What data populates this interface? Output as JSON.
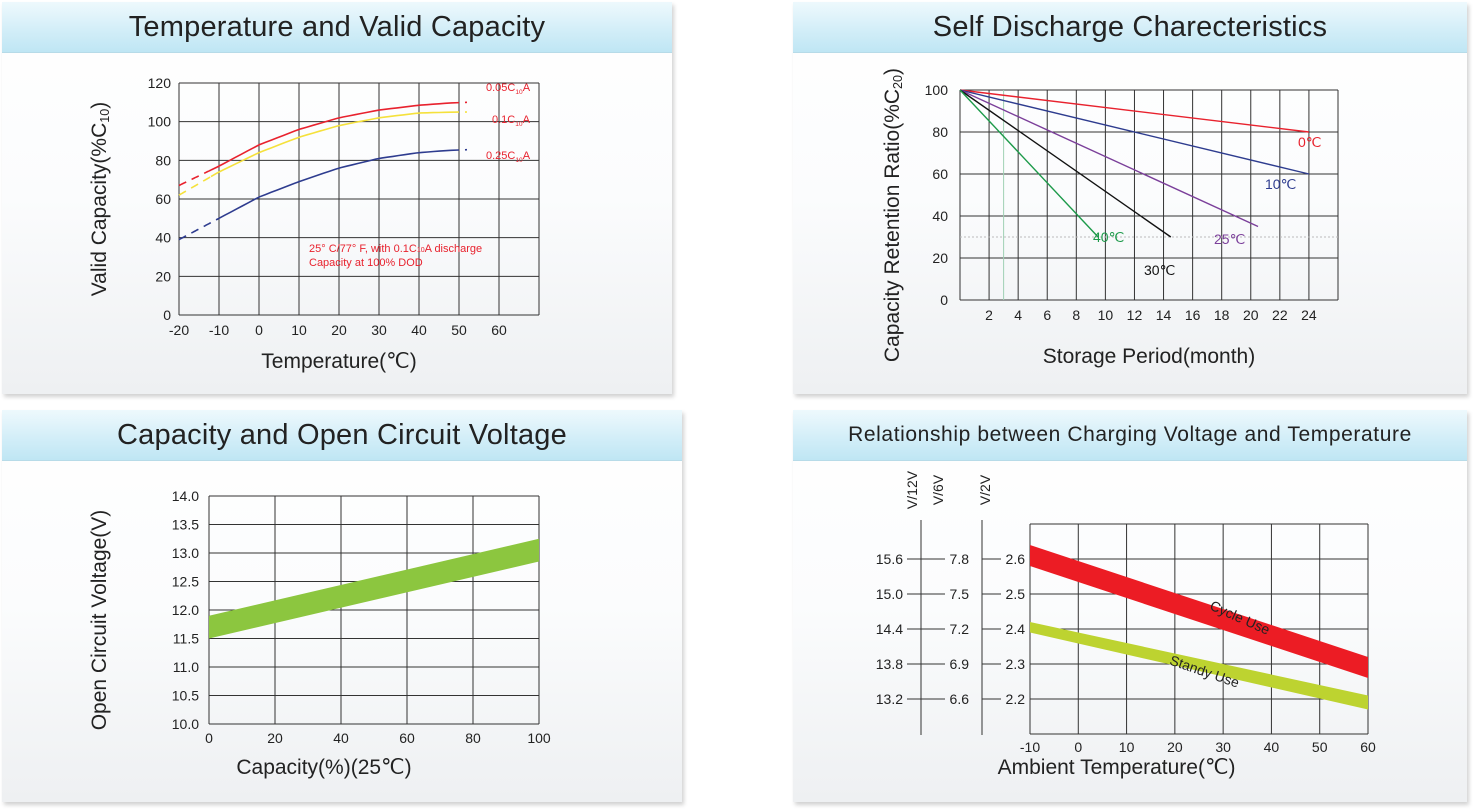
{
  "chart_data": [
    {
      "type": "line",
      "title": "Temperature and Valid Capacity",
      "xlabel": "Temperature(℃)",
      "ylabel": "Valid Capacity(%C10)",
      "xlim": [
        -20,
        70
      ],
      "ylim": [
        0,
        120
      ],
      "x_ticks": [
        "-20",
        "-10",
        "0",
        "10",
        "20",
        "30",
        "40",
        "50",
        "60"
      ],
      "y_ticks": [
        "0",
        "20",
        "40",
        "60",
        "80",
        "100",
        "120"
      ],
      "grid": true,
      "annotation": [
        "25° C/77° F, with  0.1C10A discharge",
        "Capacity at 100% DOD"
      ],
      "series": [
        {
          "name": "0.05C10A",
          "color": "#e8222e",
          "x": [
            -20,
            -10,
            0,
            10,
            20,
            30,
            40,
            50
          ],
          "y": [
            67,
            77,
            88,
            96,
            102,
            106,
            108.5,
            110
          ],
          "dashed_x_max": -12,
          "dashed_x_min": 48,
          "dashed_end": [
            52,
            110
          ]
        },
        {
          "name": "0.1C10A",
          "color": "#f5e13c",
          "x": [
            -20,
            -10,
            0,
            10,
            20,
            30,
            40,
            50
          ],
          "y": [
            62,
            74,
            84,
            92,
            98,
            102,
            104.5,
            105
          ],
          "dashed_x_max": -12,
          "dashed_x_min": 48,
          "dashed_end": [
            52,
            105
          ]
        },
        {
          "name": "0.25C10A",
          "color": "#2e3c8f",
          "x": [
            -20,
            -10,
            0,
            10,
            20,
            30,
            40,
            50
          ],
          "y": [
            39,
            50,
            61,
            69,
            76,
            81,
            84,
            85.5
          ],
          "dashed_x_max": -10,
          "dashed_x_min": 48,
          "dashed_end": [
            52,
            85.5
          ]
        }
      ]
    },
    {
      "type": "line",
      "title": "Self Discharge Charecteristics",
      "xlabel": "Storage Period(month)",
      "ylabel": "Capacity Retention Ratio(%C20)",
      "xlim": [
        0,
        26
      ],
      "ylim": [
        0,
        100
      ],
      "x_ticks": [
        "2",
        "4",
        "6",
        "8",
        "10",
        "12",
        "14",
        "16",
        "18",
        "20",
        "22",
        "24"
      ],
      "y_ticks": [
        "0",
        "20",
        "40",
        "60",
        "80",
        "100"
      ],
      "grid": true,
      "series": [
        {
          "name": "0℃",
          "color": "#e8222e",
          "x": [
            0,
            24
          ],
          "y": [
            100,
            80
          ]
        },
        {
          "name": "10℃",
          "color": "#2e3c8f",
          "x": [
            0,
            24
          ],
          "y": [
            100,
            60
          ]
        },
        {
          "name": "25℃",
          "color": "#7b3f9a",
          "x": [
            0,
            20.5
          ],
          "y": [
            100,
            35
          ]
        },
        {
          "name": "30℃",
          "color": "#111111",
          "x": [
            0,
            14.5
          ],
          "y": [
            100,
            30
          ]
        },
        {
          "name": "40℃",
          "color": "#1d9a4a",
          "x": [
            0,
            9.5
          ],
          "y": [
            100,
            30
          ]
        }
      ]
    },
    {
      "type": "area",
      "title": "Capacity and Open Circuit Voltage",
      "xlabel": "Capacity(%)(25℃)",
      "ylabel": "Open Circuit Voltage(V)",
      "xlim": [
        0,
        100
      ],
      "ylim": [
        10.0,
        14.0
      ],
      "x_ticks": [
        "0",
        "20",
        "40",
        "60",
        "80",
        "100"
      ],
      "y_ticks": [
        "10.0",
        "10.5",
        "11.0",
        "11.5",
        "12.0",
        "12.5",
        "13.0",
        "13.5",
        "14.0"
      ],
      "grid": true,
      "series": [
        {
          "name": "",
          "color": "#8cc63f",
          "x": [
            0,
            100
          ],
          "upper": [
            11.9,
            13.25
          ],
          "lower": [
            11.5,
            12.85
          ]
        }
      ]
    },
    {
      "type": "area",
      "title": "Relationship between Charging Voltage and Temperature",
      "xlabel": "Ambient Temperature(℃)",
      "ylabel": "",
      "xlim": [
        -10,
        60
      ],
      "ylim": [
        2.1,
        2.7
      ],
      "x_ticks": [
        "-10",
        "0",
        "10",
        "20",
        "30",
        "40",
        "50",
        "60"
      ],
      "axes": [
        {
          "label": "V/12V",
          "ticks": [
            "13.2",
            "13.8",
            "14.4",
            "15.0",
            "15.6"
          ]
        },
        {
          "label": "V/6V",
          "ticks": [
            "6.6",
            "6.9",
            "7.2",
            "7.5",
            "7.8"
          ]
        },
        {
          "label": "V/2V",
          "ticks": [
            "2.2",
            "2.3",
            "2.4",
            "2.5",
            "2.6"
          ]
        }
      ],
      "grid": true,
      "series": [
        {
          "name": "Cycle Use",
          "color": "#ec1c24",
          "x": [
            -10,
            60
          ],
          "upper": [
            2.64,
            2.32
          ],
          "lower": [
            2.58,
            2.26
          ]
        },
        {
          "name": "Standy Use",
          "color": "#bdd330",
          "x": [
            -10,
            60
          ],
          "upper": [
            2.42,
            2.21
          ],
          "lower": [
            2.39,
            2.17
          ]
        }
      ]
    }
  ]
}
